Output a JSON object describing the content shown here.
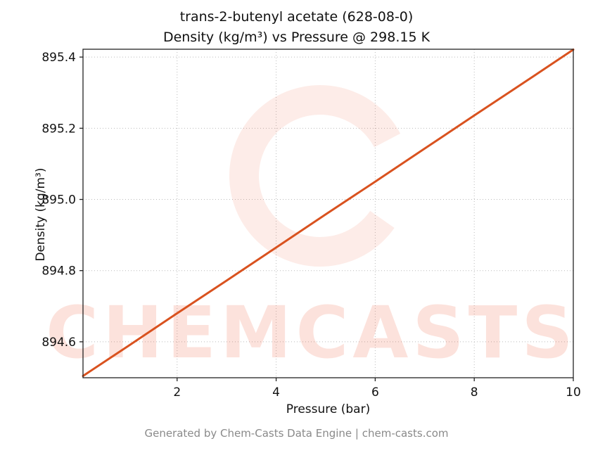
{
  "title": {
    "line1": "trans-2-butenyl acetate (628-08-0)",
    "line2": "Density (kg/m³) vs Pressure @ 298.15 K"
  },
  "footer": "Generated by Chem-Casts Data Engine | chem-casts.com",
  "watermark": {
    "text": "CHEMCASTS",
    "color": "#ee5f3f",
    "text_opacity": 0.18,
    "logo_opacity": 0.12
  },
  "chart_data": {
    "type": "line",
    "title": "trans-2-butenyl acetate (628-08-0) Density (kg/m³) vs Pressure @ 298.15 K",
    "xlabel": "Pressure (bar)",
    "ylabel": "Density (kg/m³)",
    "xlim": [
      0.1,
      10
    ],
    "ylim": [
      894.499,
      895.422
    ],
    "xticks": [
      2,
      4,
      6,
      8,
      10
    ],
    "yticks": [
      894.6,
      894.8,
      895.0,
      895.2,
      895.4
    ],
    "grid": true,
    "legend": false,
    "line_color": "#d9521f",
    "line_width": 3,
    "series": [
      {
        "name": "Density",
        "x": [
          0.1,
          1,
          2,
          3,
          4,
          5,
          6,
          7,
          8,
          9,
          10
        ],
        "y": [
          894.504,
          894.587,
          894.68,
          894.772,
          894.865,
          894.958,
          895.05,
          895.143,
          895.236,
          895.328,
          895.421
        ]
      }
    ]
  }
}
